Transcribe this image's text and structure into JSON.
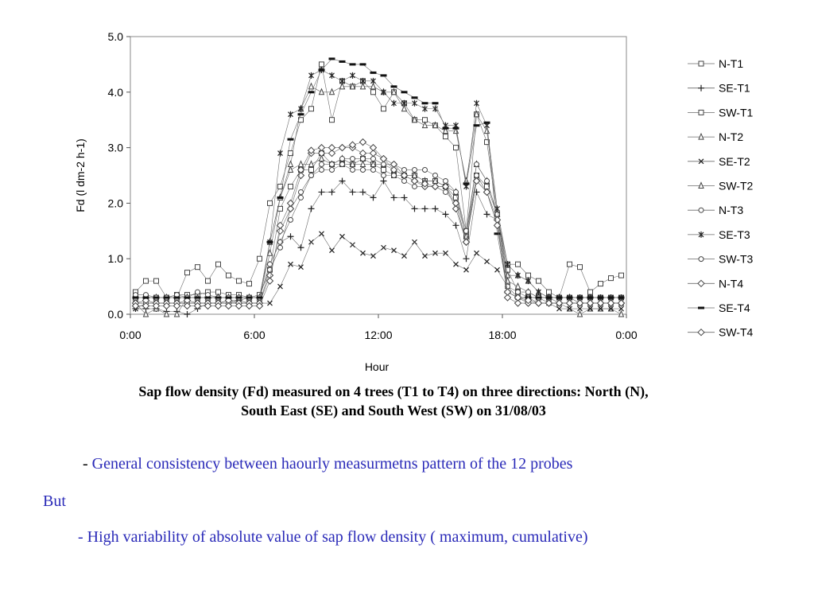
{
  "chart_data": {
    "type": "line",
    "xlabel": "Hour",
    "ylabel": "Fd (l dm-2 h-1)",
    "x_tick_labels": [
      "0:00",
      "6:00",
      "12:00",
      "18:00",
      "0:00"
    ],
    "x_tick_hours": [
      0,
      6,
      12,
      18,
      24
    ],
    "y_tick_labels": [
      "0.0",
      "1.0",
      "2.0",
      "3.0",
      "4.0",
      "5.0"
    ],
    "xlim": [
      0,
      24
    ],
    "ylim": [
      0,
      5
    ],
    "grid": false,
    "legend_position": "right",
    "x": [
      0.25,
      0.75,
      1.25,
      1.75,
      2.25,
      2.75,
      3.25,
      3.75,
      4.25,
      4.75,
      5.25,
      5.75,
      6.25,
      6.75,
      7.25,
      7.75,
      8.25,
      8.75,
      9.25,
      9.75,
      10.25,
      10.75,
      11.25,
      11.75,
      12.25,
      12.75,
      13.25,
      13.75,
      14.25,
      14.75,
      15.25,
      15.75,
      16.25,
      16.75,
      17.25,
      17.75,
      18.25,
      18.75,
      19.25,
      19.75,
      20.25,
      20.75,
      21.25,
      21.75,
      22.25,
      22.75,
      23.25,
      23.75
    ],
    "series": [
      {
        "name": "N-T1",
        "marker": "square",
        "values": [
          0.4,
          0.6,
          0.6,
          0.3,
          0.3,
          0.75,
          0.85,
          0.6,
          0.9,
          0.7,
          0.6,
          0.55,
          1.0,
          2.0,
          2.3,
          2.9,
          3.5,
          3.7,
          4.5,
          3.5,
          4.2,
          4.1,
          4.2,
          4.0,
          3.7,
          4.0,
          3.8,
          3.5,
          3.5,
          3.4,
          3.2,
          3.0,
          1.5,
          3.6,
          3.1,
          1.8,
          0.9,
          0.9,
          0.7,
          0.6,
          0.4,
          0.3,
          0.9,
          0.85,
          0.4,
          0.55,
          0.65,
          0.7
        ]
      },
      {
        "name": "SE-T1",
        "marker": "plus",
        "values": [
          0.1,
          0.1,
          0.1,
          0.05,
          0.05,
          0.0,
          0.1,
          0.2,
          0.2,
          0.2,
          0.25,
          0.3,
          0.3,
          0.9,
          1.3,
          1.4,
          1.2,
          1.9,
          2.2,
          2.2,
          2.4,
          2.2,
          2.2,
          2.1,
          2.4,
          2.1,
          2.1,
          1.9,
          1.9,
          1.9,
          1.8,
          1.6,
          1.0,
          2.2,
          1.8,
          1.7,
          0.4,
          0.3,
          0.3,
          0.2,
          0.2,
          0.2,
          0.2,
          0.2,
          0.2,
          0.2,
          0.2,
          0.2
        ]
      },
      {
        "name": "SW-T1",
        "marker": "square",
        "values": [
          0.3,
          0.3,
          0.3,
          0.3,
          0.35,
          0.35,
          0.35,
          0.4,
          0.4,
          0.35,
          0.35,
          0.3,
          0.35,
          0.8,
          1.9,
          2.3,
          2.6,
          2.6,
          2.9,
          2.7,
          2.7,
          2.7,
          2.8,
          2.7,
          2.6,
          2.5,
          2.5,
          2.5,
          2.4,
          2.4,
          2.3,
          2.1,
          1.4,
          2.5,
          2.3,
          1.8,
          0.8,
          0.4,
          0.3,
          0.3,
          0.3,
          0.3,
          0.3,
          0.3,
          0.3,
          0.3,
          0.3,
          0.3
        ]
      },
      {
        "name": "N-T2",
        "marker": "triangle",
        "values": [
          0.2,
          0.0,
          0.1,
          0.0,
          0.0,
          0.3,
          0.3,
          0.3,
          0.3,
          0.3,
          0.3,
          0.3,
          0.3,
          1.3,
          2.1,
          2.6,
          2.7,
          2.7,
          2.8,
          2.7,
          2.8,
          2.7,
          2.7,
          2.7,
          2.7,
          2.6,
          2.5,
          2.5,
          2.4,
          2.4,
          2.3,
          2.2,
          1.4,
          2.7,
          2.4,
          1.8,
          0.7,
          0.7,
          0.6,
          0.4,
          0.3,
          0.2,
          0.1,
          0.0,
          0.1,
          0.1,
          0.1,
          0.0
        ]
      },
      {
        "name": "SE-T2",
        "marker": "x",
        "values": [
          0.1,
          0.2,
          0.2,
          0.2,
          0.2,
          0.2,
          0.2,
          0.2,
          0.2,
          0.25,
          0.25,
          0.2,
          0.2,
          0.2,
          0.5,
          0.9,
          0.85,
          1.3,
          1.45,
          1.15,
          1.4,
          1.25,
          1.1,
          1.05,
          1.2,
          1.15,
          1.05,
          1.3,
          1.05,
          1.1,
          1.1,
          0.9,
          0.8,
          1.1,
          0.95,
          0.8,
          0.5,
          0.3,
          0.3,
          0.3,
          0.2,
          0.1,
          0.1,
          0.1,
          0.1,
          0.1,
          0.1,
          0.1
        ]
      },
      {
        "name": "SW-T2",
        "marker": "triangle",
        "values": [
          0.3,
          0.3,
          0.3,
          0.3,
          0.3,
          0.3,
          0.3,
          0.3,
          0.3,
          0.3,
          0.3,
          0.3,
          0.3,
          1.1,
          2.1,
          2.7,
          3.7,
          4.1,
          4.0,
          4.0,
          4.1,
          4.1,
          4.1,
          4.1,
          4.0,
          4.0,
          3.7,
          3.5,
          3.4,
          3.4,
          3.3,
          3.3,
          2.4,
          3.6,
          3.3,
          1.8,
          0.6,
          0.5,
          0.4,
          0.3,
          0.3,
          0.3,
          0.3,
          0.2,
          0.2,
          0.2,
          0.2,
          0.2
        ]
      },
      {
        "name": "N-T3",
        "marker": "circle",
        "values": [
          0.35,
          0.35,
          0.3,
          0.3,
          0.35,
          0.3,
          0.4,
          0.35,
          0.3,
          0.3,
          0.3,
          0.3,
          0.3,
          0.9,
          1.3,
          1.7,
          2.1,
          2.5,
          2.7,
          2.7,
          2.8,
          2.8,
          2.8,
          2.8,
          2.7,
          2.7,
          2.6,
          2.6,
          2.6,
          2.5,
          2.4,
          2.2,
          1.5,
          2.7,
          2.4,
          1.8,
          0.5,
          0.4,
          0.4,
          0.3,
          0.3,
          0.3,
          0.3,
          0.3,
          0.3,
          0.3,
          0.3,
          0.3
        ]
      },
      {
        "name": "SE-T3",
        "marker": "star",
        "values": [
          0.2,
          0.2,
          0.2,
          0.2,
          0.2,
          0.2,
          0.2,
          0.2,
          0.2,
          0.2,
          0.2,
          0.2,
          0.2,
          1.3,
          2.9,
          3.6,
          3.7,
          4.3,
          4.4,
          4.3,
          4.2,
          4.3,
          4.2,
          4.2,
          4.0,
          3.8,
          3.8,
          3.8,
          3.7,
          3.7,
          3.4,
          3.4,
          2.3,
          3.8,
          3.4,
          1.9,
          0.9,
          0.7,
          0.6,
          0.4,
          0.3,
          0.3,
          0.3,
          0.3,
          0.3,
          0.3,
          0.3,
          0.3
        ]
      },
      {
        "name": "SW-T3",
        "marker": "circle",
        "values": [
          0.2,
          0.2,
          0.2,
          0.2,
          0.2,
          0.2,
          0.2,
          0.2,
          0.2,
          0.2,
          0.2,
          0.2,
          0.2,
          0.8,
          1.2,
          1.9,
          2.2,
          2.5,
          2.6,
          2.6,
          2.7,
          2.6,
          2.6,
          2.6,
          2.5,
          2.5,
          2.4,
          2.3,
          2.3,
          2.3,
          2.2,
          2.0,
          1.3,
          2.5,
          2.2,
          1.6,
          0.4,
          0.3,
          0.2,
          0.2,
          0.2,
          0.2,
          0.2,
          0.2,
          0.2,
          0.2,
          0.2,
          0.2
        ]
      },
      {
        "name": "N-T4",
        "marker": "diamond",
        "values": [
          0.2,
          0.25,
          0.2,
          0.2,
          0.2,
          0.25,
          0.2,
          0.2,
          0.2,
          0.25,
          0.2,
          0.2,
          0.2,
          0.7,
          1.5,
          1.9,
          2.5,
          2.9,
          2.9,
          2.9,
          3.0,
          3.0,
          2.9,
          2.9,
          2.8,
          2.7,
          2.5,
          2.4,
          2.3,
          2.3,
          2.3,
          1.9,
          1.3,
          2.4,
          2.2,
          1.7,
          0.3,
          0.2,
          0.2,
          0.2,
          0.2,
          0.2,
          0.2,
          0.2,
          0.2,
          0.2,
          0.2,
          0.2
        ]
      },
      {
        "name": "SE-T4",
        "marker": "dash",
        "values": [
          0.3,
          0.3,
          0.3,
          0.3,
          0.3,
          0.3,
          0.3,
          0.3,
          0.3,
          0.3,
          0.3,
          0.3,
          0.3,
          1.3,
          2.1,
          3.15,
          3.6,
          4.0,
          4.4,
          4.6,
          4.55,
          4.5,
          4.5,
          4.35,
          4.3,
          4.1,
          4.0,
          3.9,
          3.8,
          3.8,
          3.35,
          3.35,
          2.35,
          3.4,
          3.45,
          1.45,
          0.4,
          0.3,
          0.3,
          0.3,
          0.3,
          0.3,
          0.3,
          0.3,
          0.3,
          0.3,
          0.3,
          0.3
        ]
      },
      {
        "name": "SW-T4",
        "marker": "diamond",
        "values": [
          0.15,
          0.15,
          0.15,
          0.15,
          0.15,
          0.15,
          0.15,
          0.15,
          0.15,
          0.15,
          0.15,
          0.15,
          0.15,
          0.6,
          1.6,
          2.0,
          2.6,
          2.95,
          3.0,
          3.0,
          3.0,
          3.05,
          3.1,
          3.0,
          2.8,
          2.6,
          2.5,
          2.4,
          2.35,
          2.3,
          2.3,
          2.0,
          1.3,
          2.4,
          2.2,
          1.6,
          0.4,
          0.3,
          0.25,
          0.2,
          0.2,
          0.2,
          0.2,
          0.2,
          0.2,
          0.2,
          0.2,
          0.2
        ]
      }
    ]
  },
  "caption": "Sap flow density (Fd) measured on 4 trees (T1 to T4) on three directions: North (N), South East (SE) and South West (SW) on 31/08/03",
  "bullets": {
    "dash": "- ",
    "point1": "General consistency between haourly measurmetns pattern of the 12 probes",
    "but": "But",
    "point2": "- High variability of absolute value of sap flow density ( maximum, cumulative)"
  }
}
